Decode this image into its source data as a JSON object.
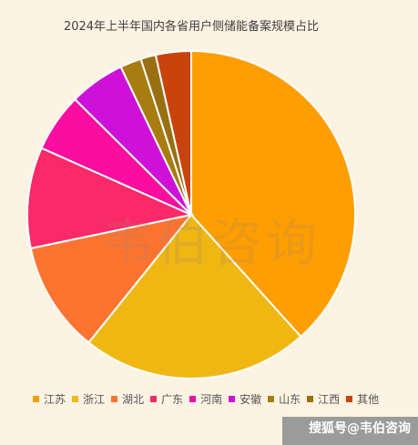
{
  "chart_data": {
    "type": "pie",
    "title": "2024年上半年国内各省用户侧储能备案规模占比",
    "categories": [
      "江苏",
      "浙江",
      "湖北",
      "广东",
      "河南",
      "安徽",
      "山东",
      "江西",
      "其他"
    ],
    "values": [
      38.5,
      22.5,
      11.0,
      10.0,
      5.8,
      5.5,
      2.1,
      1.5,
      3.5
    ],
    "colors": [
      "#ff9e00",
      "#f0b713",
      "#fd7430",
      "#fb2968",
      "#fa0da0",
      "#ce11d8",
      "#a77d0f",
      "#997011",
      "#c9440c"
    ],
    "legend_position": "bottom",
    "start_direction": "12 o'clock, clockwise"
  },
  "watermark": "韦伯咨询",
  "footer": {
    "text": "搜狐号@韦伯咨询"
  }
}
